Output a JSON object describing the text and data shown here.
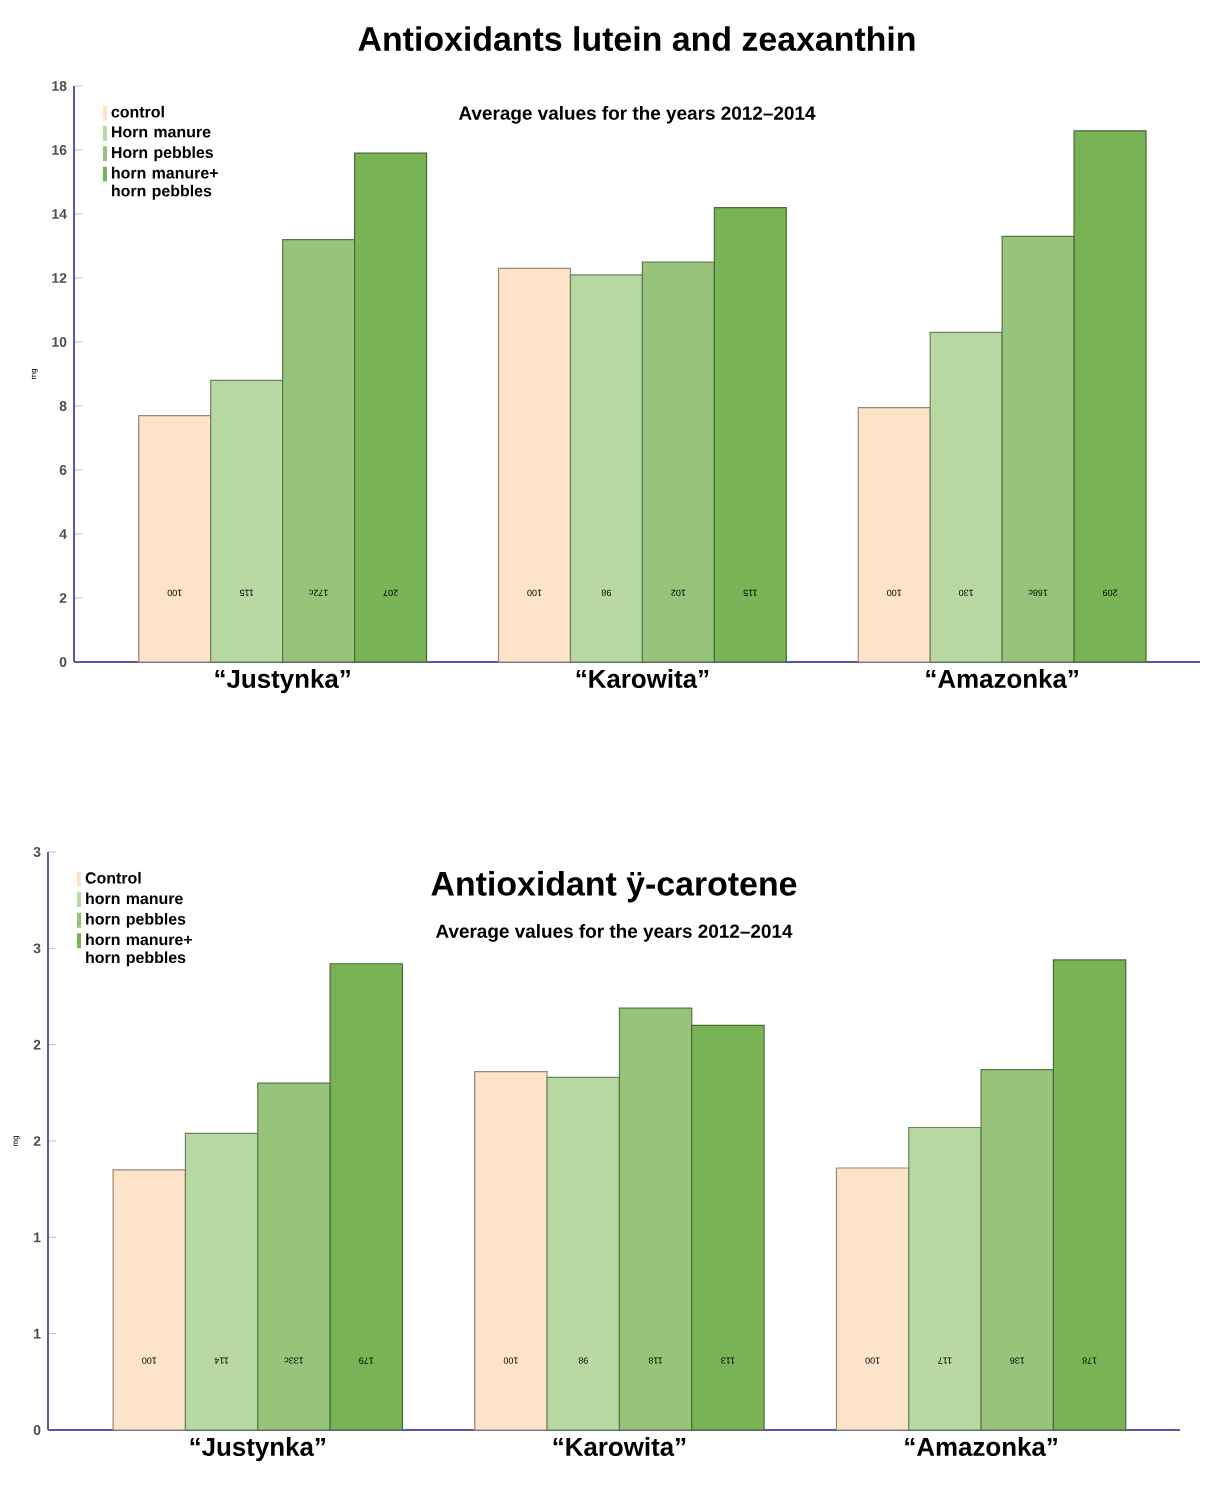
{
  "chart_data": [
    {
      "type": "bar",
      "title": "Antioxidants lutein and zeaxanthin",
      "subtitle": "Average values for the years 2012–2014",
      "ylabel": "mg",
      "categories": [
        "“Justynka”",
        "“Karowita”",
        "“Amazonka”"
      ],
      "ylim": [
        0,
        18
      ],
      "yticks": [
        0,
        2,
        4,
        6,
        8,
        10,
        12,
        14,
        16,
        18
      ],
      "legend": "top left",
      "annotations": [
        "100",
        "115",
        "172c",
        "207",
        "100",
        "98",
        "102",
        "115",
        "100",
        "130",
        "168c",
        "209"
      ],
      "series": [
        {
          "name": "control",
          "color": "#fde3c8",
          "values": [
            7.7,
            12.3,
            7.95
          ]
        },
        {
          "name": "Horn manure",
          "color": "#b8d8a2",
          "values": [
            8.8,
            12.1,
            10.3
          ]
        },
        {
          "name": "Horn pebbles",
          "color": "#97c47a",
          "values": [
            13.2,
            12.5,
            13.3
          ]
        },
        {
          "name": "horn manure+ horn pebbles",
          "color": "#78b356",
          "values": [
            15.9,
            14.2,
            16.6
          ]
        }
      ]
    },
    {
      "type": "bar",
      "title": "Antioxidant ÿ-carotene",
      "subtitle": "Average values for the years 2012–2014",
      "ylabel": "mg",
      "categories": [
        "“Justynka”",
        "“Karowita”",
        "“Amazonka”"
      ],
      "ylim": [
        0,
        3
      ],
      "yticks": [
        0,
        {
          "value": 0.5,
          "label": "1"
        },
        1,
        {
          "value": 1.5,
          "label": "2"
        },
        2,
        {
          "value": 2.5,
          "label": "3"
        },
        3
      ],
      "legend": "top left",
      "annotations": [
        "100",
        "114",
        "133c",
        "179",
        "100",
        "98",
        "118",
        "113",
        "100",
        "117",
        "136",
        "178"
      ],
      "series": [
        {
          "name": "Control",
          "color": "#fde3c8",
          "values": [
            1.35,
            1.86,
            1.36
          ]
        },
        {
          "name": "horn manure",
          "color": "#b8d8a2",
          "values": [
            1.54,
            1.83,
            1.57
          ]
        },
        {
          "name": "horn pebbles",
          "color": "#97c47a",
          "values": [
            1.8,
            2.19,
            1.87
          ]
        },
        {
          "name": "horn manure+ horn pebbles",
          "color": "#78b356",
          "values": [
            2.42,
            2.1,
            2.44
          ]
        }
      ]
    }
  ]
}
